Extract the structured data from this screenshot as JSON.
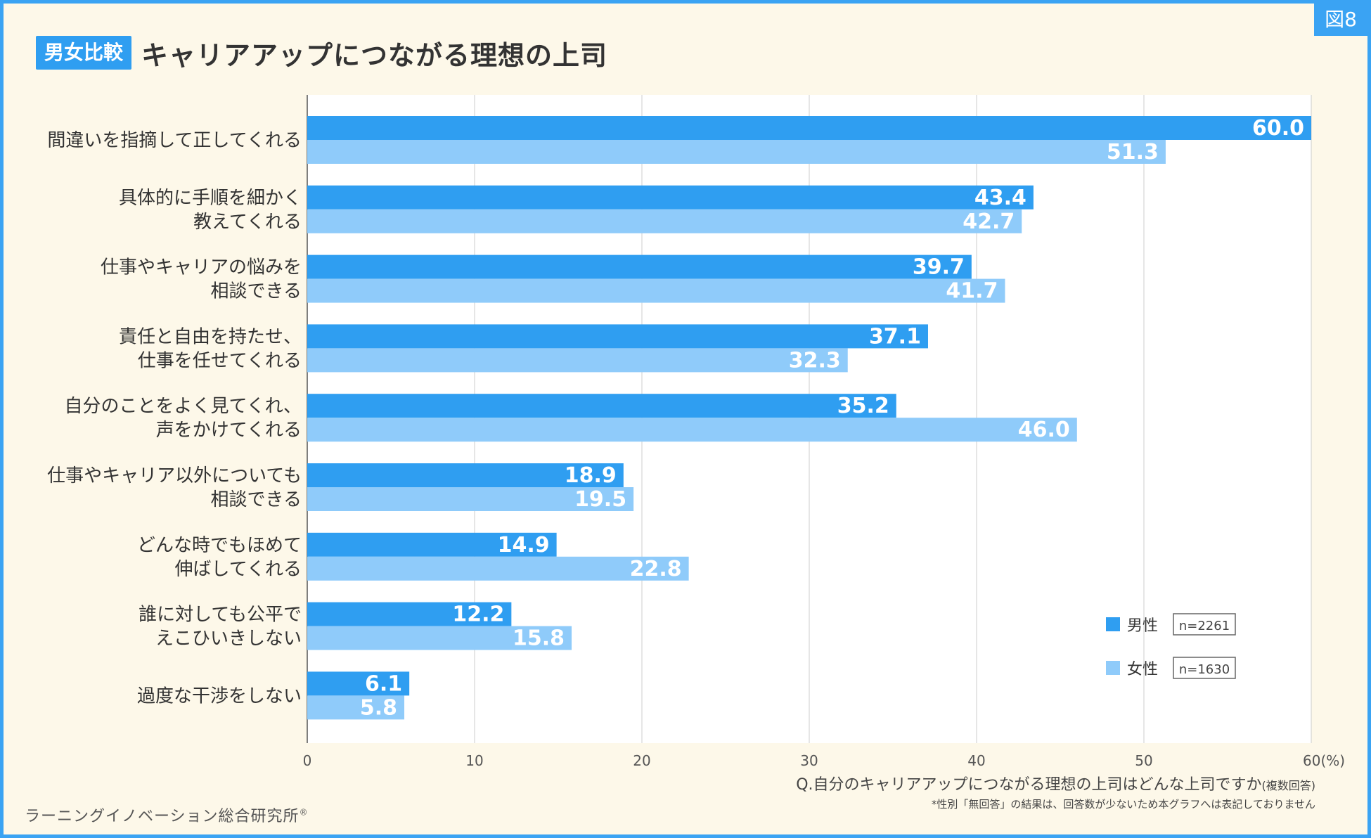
{
  "figure_tag": "図8",
  "title_badge": "男女比較",
  "title": "キャリアアップにつながる理想の上司",
  "question": "Q.自分のキャリアアップにつながる理想の上司はどんな上司ですか",
  "question_suffix": "(複数回答)",
  "note": "*性別「無回答」の結果は、回答数が少ないため本グラフへは表記しておりません",
  "brand": "ラーニングイノベーション総合研究所",
  "brand_mark": "®",
  "colors": {
    "male": "#2f9ef1",
    "female": "#8fcbfa",
    "grid": "#cccccc",
    "background": "#fdf8e9"
  },
  "chart_data": {
    "type": "bar",
    "orientation": "horizontal",
    "categories": [
      [
        "間違いを指摘して正してくれる"
      ],
      [
        "具体的に手順を細かく",
        "教えてくれる"
      ],
      [
        "仕事やキャリアの悩みを",
        "相談できる"
      ],
      [
        "責任と自由を持たせ、",
        "仕事を任せてくれる"
      ],
      [
        "自分のことをよく見てくれ、",
        "声をかけてくれる"
      ],
      [
        "仕事やキャリア以外についても",
        "相談できる"
      ],
      [
        "どんな時でもほめて",
        "伸ばしてくれる"
      ],
      [
        "誰に対しても公平で",
        "えこひいきしない"
      ],
      [
        "過度な干渉をしない"
      ]
    ],
    "series": [
      {
        "name": "男性",
        "n_label": "n=2261",
        "values": [
          60.0,
          43.4,
          39.7,
          37.1,
          35.2,
          18.9,
          14.9,
          12.2,
          6.1
        ]
      },
      {
        "name": "女性",
        "n_label": "n=1630",
        "values": [
          51.3,
          42.7,
          41.7,
          32.3,
          46.0,
          19.5,
          22.8,
          15.8,
          5.8
        ]
      }
    ],
    "xlim": [
      0,
      60
    ],
    "xticks": [
      "0",
      "10",
      "20",
      "30",
      "40",
      "50",
      "60(%)"
    ],
    "grid": true,
    "legend_position": "bottom-right"
  }
}
